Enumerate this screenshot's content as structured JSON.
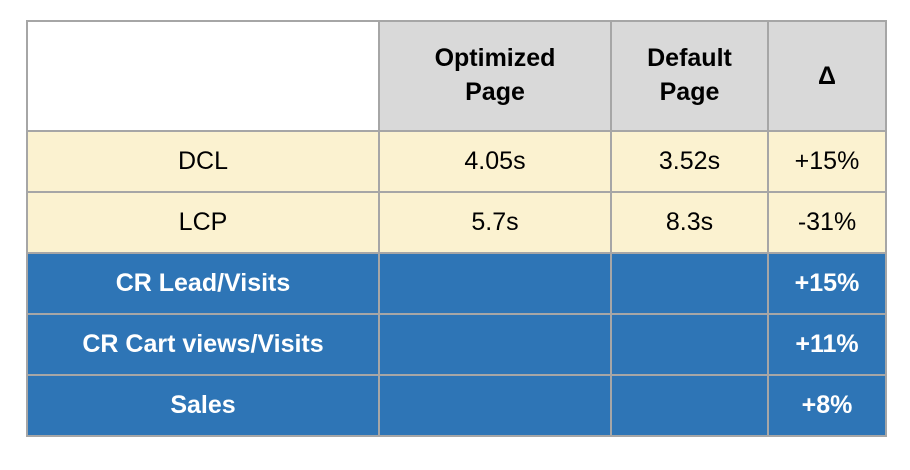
{
  "colors": {
    "header_bg": "#d9d9d9",
    "corner_bg": "#ffffff",
    "cream_bg": "#fbf2d0",
    "blue_bg": "#2e75b6",
    "border": "#a6a6a6",
    "text_dark": "#000000",
    "text_light": "#ffffff"
  },
  "chart_data": {
    "type": "table",
    "columns": [
      "",
      "Optimized Page",
      "Default Page",
      "Δ"
    ],
    "rows": [
      [
        "DCL",
        "4.05s",
        "3.52s",
        "+15%"
      ],
      [
        "LCP",
        "5.7s",
        "8.3s",
        "-31%"
      ],
      [
        "CR Lead/Visits",
        "",
        "",
        "+15%"
      ],
      [
        "CR Cart views/Visits",
        "",
        "",
        "+11%"
      ],
      [
        "Sales",
        "",
        "",
        "+8%"
      ]
    ],
    "title": "",
    "layout_hints": {
      "header_style": "gray, bold, black text",
      "row_groups": [
        {
          "rows": [
            0,
            1
          ],
          "style": "cream background, regular black text"
        },
        {
          "rows": [
            2,
            3,
            4
          ],
          "style": "blue background, bold white text, empty value cells"
        }
      ]
    }
  }
}
